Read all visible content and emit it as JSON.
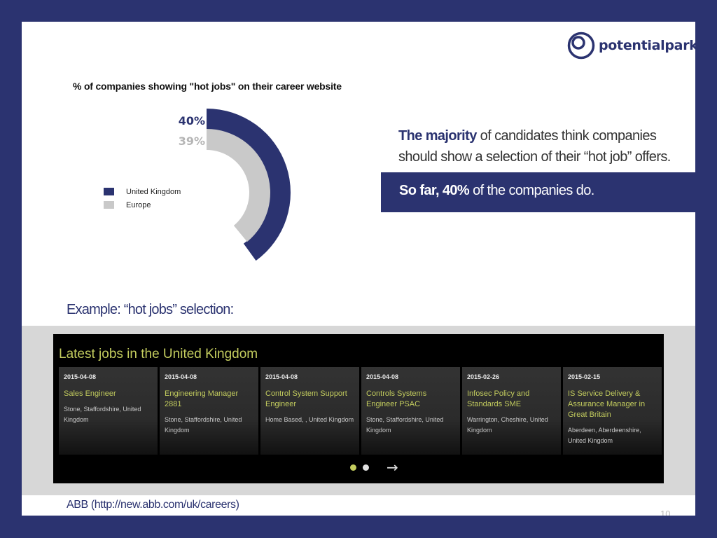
{
  "logo": {
    "text": "potentialpark",
    "color": "#2b3370"
  },
  "chart_title": "% of companies showing \"hot jobs\" on their career website",
  "chart_data": {
    "type": "pie",
    "variant": "concentric-arc",
    "title": "% of companies showing \"hot jobs\" on their career website",
    "legend_position": "left",
    "series": [
      {
        "name": "United Kingdom",
        "value": 40,
        "label": "40%",
        "color": "#2b3370"
      },
      {
        "name": "Europe",
        "value": 39,
        "label": "39%",
        "color": "#c9c9c9"
      }
    ]
  },
  "message": {
    "line1_bold": "The majority",
    "line1_rest": " of candidates think companies should show a selection of their “hot job” offers.",
    "line2_bold": "So far, 40%",
    "line2_rest": " of the companies do."
  },
  "example_title": "Example: “hot jobs” selection:",
  "jobs_panel": {
    "heading": "Latest jobs in the United Kingdom",
    "jobs": [
      {
        "date": "2015-04-08",
        "title": "Sales Engineer",
        "location": "Stone, Staffordshire, United Kingdom"
      },
      {
        "date": "2015-04-08",
        "title": "Engineering Manager 2881",
        "location": "Stone, Staffordshire, United Kingdom"
      },
      {
        "date": "2015-04-08",
        "title": "Control System Support Engineer",
        "location": "Home Based, , United Kingdom"
      },
      {
        "date": "2015-04-08",
        "title": "Controls Systems Engineer PSAC",
        "location": "Stone, Staffordshire, United Kingdom"
      },
      {
        "date": "2015-02-26",
        "title": "Infosec Policy and Standards SME",
        "location": "Warrington, Cheshire, United Kingdom"
      },
      {
        "date": "2015-02-15",
        "title": "IS Service Delivery & Assurance Manager in Great Britain",
        "location": "Aberdeen, Aberdeenshire, United Kingdom"
      }
    ],
    "accent_color": "#c3cc5e",
    "next_icon": "arrow-right-icon"
  },
  "source": "ABB (http://new.abb.com/uk/careers)",
  "page_number": "10"
}
